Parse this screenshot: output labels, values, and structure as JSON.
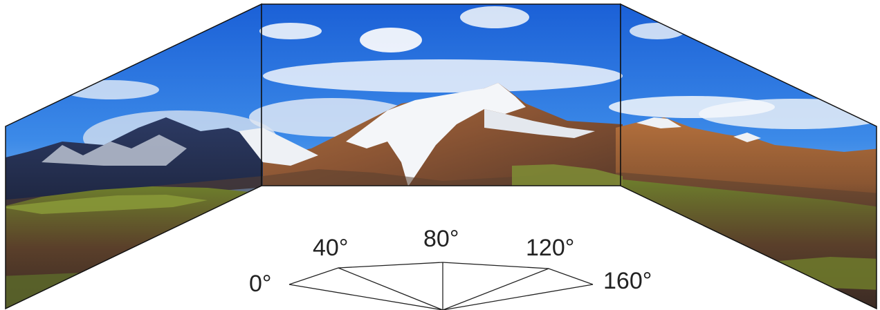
{
  "scene": {
    "panels": [
      "left",
      "center",
      "right"
    ],
    "subject": "panoramic snow-capped mountain landscape with blue sky and clouds"
  },
  "viewing_angles": {
    "labels": [
      "0°",
      "40°",
      "80°",
      "120°",
      "160°"
    ]
  },
  "colors": {
    "sky_top": "#1f63d9",
    "sky_mid": "#4a96ee",
    "cloud": "#f2f6fb",
    "snow": "#f4f6f8",
    "rock_brown": "#8a5a36",
    "rock_rust": "#a8683c",
    "shadow": "#3b2d2a",
    "grass_green": "#7c8a2e",
    "frame_stroke": "#111111"
  }
}
